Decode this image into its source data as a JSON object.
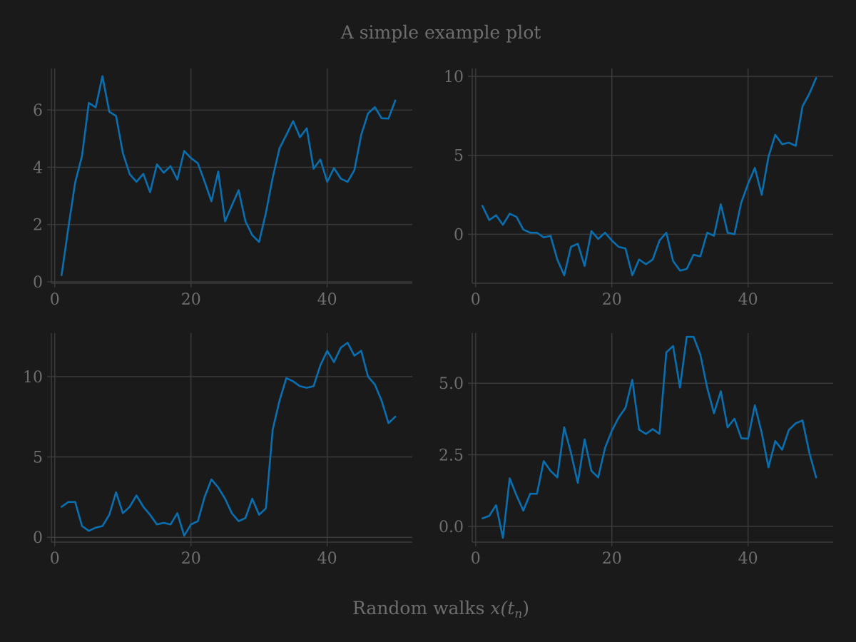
{
  "title": "A simple example plot",
  "xlabel_main": "Random walks ",
  "xlabel_math": "x(t",
  "xlabel_sub": "n",
  "xlabel_close": ")",
  "colors": {
    "background": "#1a1a1a",
    "line": "#0a6fb0",
    "text": "#6e6e6e",
    "grid": "#3a3a3a"
  },
  "chart_data": [
    {
      "type": "line",
      "xlim": [
        -0.5,
        52.5
      ],
      "ylim": [
        -0.05,
        7.45
      ],
      "xticks": [
        0,
        20,
        40
      ],
      "yticks": [
        0,
        2,
        4,
        6
      ],
      "ytick_labels": [
        "0",
        "2",
        "4",
        "6"
      ],
      "grid": true,
      "x": [
        1,
        2,
        3,
        4,
        5,
        6,
        7,
        8,
        9,
        10,
        11,
        12,
        13,
        14,
        15,
        16,
        17,
        18,
        19,
        20,
        21,
        22,
        23,
        24,
        25,
        26,
        27,
        28,
        29,
        30,
        31,
        32,
        33,
        34,
        35,
        36,
        37,
        38,
        39,
        40,
        41,
        42,
        43,
        44,
        45,
        46,
        47,
        48,
        49,
        50
      ],
      "values": [
        0.23,
        1.9,
        3.47,
        4.4,
        6.25,
        6.09,
        7.18,
        5.94,
        5.79,
        4.5,
        3.76,
        3.49,
        3.77,
        3.13,
        4.1,
        3.81,
        4.04,
        3.57,
        4.57,
        4.32,
        4.14,
        3.5,
        2.81,
        3.85,
        2.11,
        2.66,
        3.2,
        2.11,
        1.63,
        1.39,
        2.4,
        3.64,
        4.66,
        5.13,
        5.61,
        5.05,
        5.36,
        3.95,
        4.27,
        3.49,
        3.97,
        3.6,
        3.49,
        3.9,
        5.13,
        5.88,
        6.1,
        5.71,
        5.7,
        6.33
      ]
    },
    {
      "type": "line",
      "xlim": [
        -0.5,
        52.5
      ],
      "ylim": [
        -3.1,
        10.5
      ],
      "xticks": [
        0,
        20,
        40
      ],
      "yticks": [
        0,
        5,
        10
      ],
      "ytick_labels": [
        "0",
        "5",
        "10"
      ],
      "grid": true,
      "x": [
        1,
        2,
        3,
        4,
        5,
        6,
        7,
        8,
        9,
        10,
        11,
        12,
        13,
        14,
        15,
        16,
        17,
        18,
        19,
        20,
        21,
        22,
        23,
        24,
        25,
        26,
        27,
        28,
        29,
        30,
        31,
        32,
        33,
        34,
        35,
        36,
        37,
        38,
        39,
        40,
        41,
        42,
        43,
        44,
        45,
        46,
        47,
        48,
        49,
        50
      ],
      "values": [
        1.8,
        0.9,
        1.2,
        0.6,
        1.3,
        1.1,
        0.3,
        0.1,
        0.1,
        -0.2,
        -0.1,
        -1.6,
        -2.6,
        -0.8,
        -0.6,
        -2.0,
        0.2,
        -0.3,
        0.1,
        -0.4,
        -0.8,
        -0.9,
        -2.6,
        -1.6,
        -1.9,
        -1.6,
        -0.4,
        0.1,
        -1.7,
        -2.3,
        -2.2,
        -1.3,
        -1.4,
        0.1,
        -0.1,
        1.9,
        0.1,
        0.0,
        2.0,
        3.2,
        4.2,
        2.5,
        4.9,
        6.3,
        5.7,
        5.8,
        5.6,
        8.1,
        8.9,
        9.9
      ]
    },
    {
      "type": "line",
      "xlim": [
        -0.5,
        52.5
      ],
      "ylim": [
        -0.3,
        12.7
      ],
      "xticks": [
        0,
        20,
        40
      ],
      "yticks": [
        0,
        5,
        10
      ],
      "ytick_labels": [
        "0",
        "5",
        "10"
      ],
      "grid": true,
      "x": [
        1,
        2,
        3,
        4,
        5,
        6,
        7,
        8,
        9,
        10,
        11,
        12,
        13,
        14,
        15,
        16,
        17,
        18,
        19,
        20,
        21,
        22,
        23,
        24,
        25,
        26,
        27,
        28,
        29,
        30,
        31,
        32,
        33,
        34,
        35,
        36,
        37,
        38,
        39,
        40,
        41,
        42,
        43,
        44,
        45,
        46,
        47,
        48,
        49,
        50
      ],
      "values": [
        1.9,
        2.2,
        2.2,
        0.7,
        0.4,
        0.6,
        0.7,
        1.4,
        2.8,
        1.5,
        1.9,
        2.6,
        1.9,
        1.4,
        0.8,
        0.9,
        0.8,
        1.5,
        0.1,
        0.8,
        1.0,
        2.5,
        3.6,
        3.1,
        2.4,
        1.5,
        1.0,
        1.2,
        2.4,
        1.4,
        1.8,
        6.7,
        8.5,
        9.9,
        9.7,
        9.4,
        9.3,
        9.4,
        10.7,
        11.6,
        10.9,
        11.8,
        12.1,
        11.3,
        11.6,
        10.0,
        9.5,
        8.5,
        7.1,
        7.5
      ]
    },
    {
      "type": "line",
      "xlim": [
        -0.5,
        52.5
      ],
      "ylim": [
        -0.55,
        6.75
      ],
      "xticks": [
        0,
        20,
        40
      ],
      "yticks": [
        0.0,
        2.5,
        5.0
      ],
      "ytick_labels": [
        "0.0",
        "2.5",
        "5.0"
      ],
      "grid": true,
      "x": [
        1,
        2,
        3,
        4,
        5,
        6,
        7,
        8,
        9,
        10,
        11,
        12,
        13,
        14,
        15,
        16,
        17,
        18,
        19,
        20,
        21,
        22,
        23,
        24,
        25,
        26,
        27,
        28,
        29,
        30,
        31,
        32,
        33,
        34,
        35,
        36,
        37,
        38,
        39,
        40,
        41,
        42,
        43,
        44,
        45,
        46,
        47,
        48,
        49,
        50
      ],
      "values": [
        0.28,
        0.37,
        0.74,
        -0.4,
        1.68,
        1.08,
        0.55,
        1.14,
        1.14,
        2.28,
        1.94,
        1.71,
        3.46,
        2.57,
        1.52,
        3.04,
        1.94,
        1.71,
        2.74,
        3.34,
        3.8,
        4.14,
        5.12,
        3.38,
        3.23,
        3.4,
        3.23,
        6.08,
        6.3,
        4.85,
        6.62,
        6.62,
        6.0,
        4.84,
        3.95,
        4.72,
        3.46,
        3.76,
        3.08,
        3.06,
        4.23,
        3.27,
        2.06,
        2.98,
        2.68,
        3.37,
        3.6,
        3.7,
        2.57,
        1.71
      ]
    }
  ]
}
